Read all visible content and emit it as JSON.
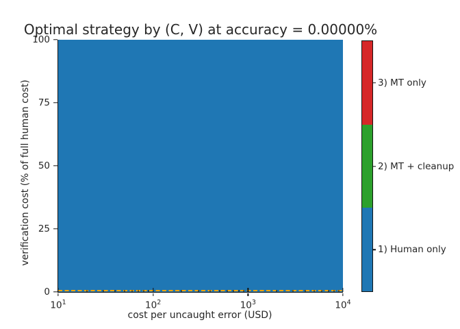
{
  "figure": {
    "background": "#ffffff",
    "text_color": "#262626",
    "spine_color": "#111111"
  },
  "chart_data": {
    "type": "heatmap",
    "title": "Optimal strategy by (C, V) at accuracy = 0.00000%",
    "xlabel": "cost per uncaught error (USD)",
    "ylabel": "verification cost (% of full human cost)",
    "x_scale": "log",
    "xlim": [
      10,
      10000
    ],
    "ylim": [
      0,
      100
    ],
    "x_tick_values": [
      10,
      100,
      1000,
      10000
    ],
    "x_tick_labels": [
      "10^1",
      "10^2",
      "10^3",
      "10^4"
    ],
    "y_tick_values": [
      0,
      25,
      50,
      75,
      100
    ],
    "grid": false,
    "legend_position": "colorbar-right",
    "regions": [
      {
        "strategy": "1) Human only",
        "color": "#1f77b4",
        "x_range": [
          10,
          10000
        ],
        "y_range": [
          0,
          100
        ]
      }
    ],
    "boundary_line": {
      "y": 0,
      "color": "#ffa500",
      "style": "dashed"
    },
    "colorbar": {
      "segments": [
        {
          "label": "3) MT only",
          "color": "#d62728"
        },
        {
          "label": "2) MT + cleanup",
          "color": "#2ca02c"
        },
        {
          "label": "1) Human only",
          "color": "#1f77b4"
        }
      ]
    }
  }
}
